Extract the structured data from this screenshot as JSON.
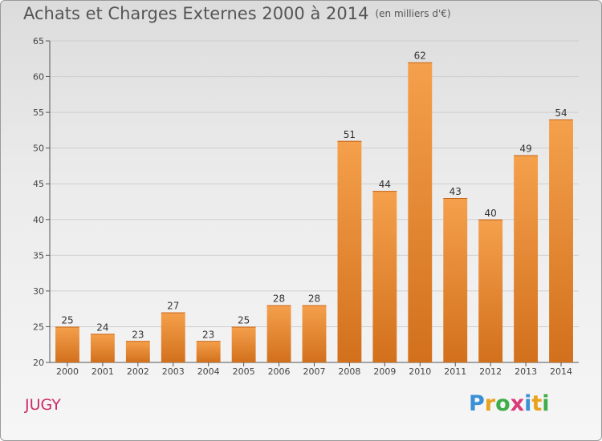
{
  "title": "Achats et Charges Externes 2000 à 2014",
  "subtitle": "(en milliers d'€)",
  "location": "JUGY",
  "logo": {
    "letters": [
      "P",
      "r",
      "o",
      "x",
      "i",
      "t",
      "i"
    ],
    "colors": [
      "#3a8fd6",
      "#e8a21c",
      "#3fae49",
      "#d93a7a",
      "#3a8fd6",
      "#e8a21c",
      "#3fae49"
    ]
  },
  "colors": {
    "bar_top": "#f5a04c",
    "bar_bottom": "#d2701c",
    "axis": "#555555",
    "grid": "#cfcfcf"
  },
  "chart_data": {
    "type": "bar",
    "categories": [
      "2000",
      "2001",
      "2002",
      "2003",
      "2004",
      "2005",
      "2006",
      "2007",
      "2008",
      "2009",
      "2010",
      "2011",
      "2012",
      "2013",
      "2014"
    ],
    "values": [
      25,
      24,
      23,
      27,
      23,
      25,
      28,
      28,
      51,
      44,
      62,
      43,
      40,
      49,
      54
    ],
    "data_labels": [
      "25",
      "24",
      "23",
      "27",
      "23",
      "25",
      "28",
      "28",
      "51",
      "44",
      "62",
      "43",
      "40",
      "49",
      "54"
    ],
    "ylim": [
      20,
      65
    ],
    "yticks": [
      20,
      25,
      30,
      35,
      40,
      45,
      50,
      55,
      60,
      65
    ],
    "grid": true
  }
}
